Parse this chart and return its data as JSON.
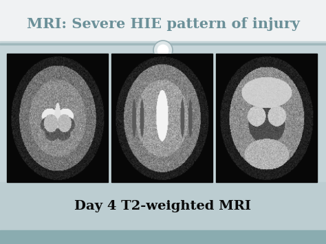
{
  "title": "MRI: Severe HIE pattern of injury",
  "subtitle": "Day 4 T2-weighted MRI",
  "title_color": "#6b9098",
  "subtitle_color": "#0a0a0a",
  "bg_top_color": "#f0f2f3",
  "bg_bottom_color": "#bccdd1",
  "bg_strip_color": "#8aacb0",
  "title_fontsize": 15,
  "subtitle_fontsize": 14,
  "circle_face_color": "#dde6e8",
  "circle_edge_color": "#9ab0b5"
}
